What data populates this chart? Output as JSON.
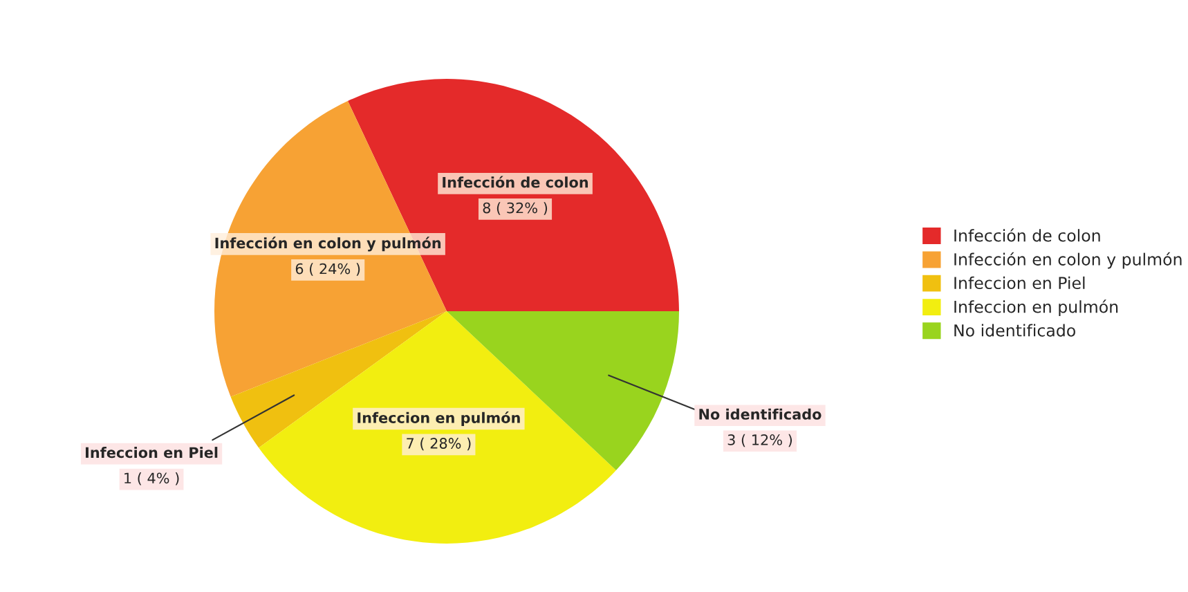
{
  "chart_data": {
    "type": "pie",
    "categories": [
      "Infección de colon",
      "Infección en colon y pulmón",
      "Infeccion en Piel",
      "Infeccion en pulmón",
      "No identificado"
    ],
    "values": [
      8,
      6,
      1,
      7,
      3
    ],
    "value_labels": [
      "8 ( 32% )",
      "6 ( 24% )",
      "1 ( 4% )",
      "7 ( 28% )",
      "3 ( 12% )"
    ],
    "colors": [
      "#e42a2a",
      "#f7a234",
      "#f0c010",
      "#f2ee10",
      "#99d41e"
    ],
    "legend": "right"
  }
}
